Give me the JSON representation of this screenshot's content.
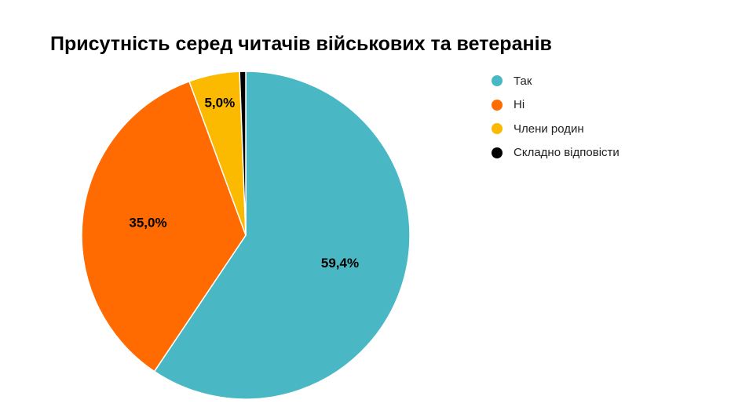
{
  "chart_data": {
    "type": "pie",
    "title": "Присутність серед читачів військових та ветеранів",
    "categories": [
      "Так",
      "Ні",
      "Члени родин",
      "Складно відповісти"
    ],
    "values": [
      59.4,
      35.0,
      5.0,
      0.6
    ],
    "data_labels": [
      "59,4%",
      "35,0%",
      "5,0%",
      ""
    ],
    "colors": [
      "#4ab8c4",
      "#ff6b00",
      "#fbb900",
      "#000000"
    ],
    "legend_position": "right"
  }
}
